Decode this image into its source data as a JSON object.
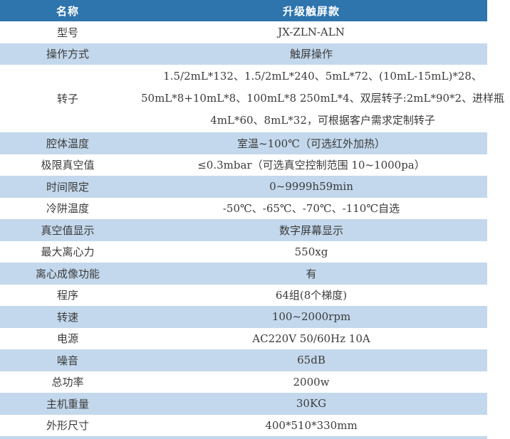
{
  "colors": {
    "header_bg": "#2e74ad",
    "header_text": "#ffffff",
    "row_blue_bg": "#c3d8ec",
    "row_white_bg": "#ffffff",
    "body_text": "#3b3b3b",
    "bottom_strip": "#c3d8ec"
  },
  "table": {
    "header": {
      "name_col": "名称",
      "model_col": "升级触屏款"
    },
    "rows": [
      {
        "label": "型号",
        "value": "JX-ZLN-ALN",
        "shade": "white"
      },
      {
        "label": "操作方式",
        "value": "触屏操作",
        "shade": "blue"
      },
      {
        "label": "转子",
        "value_lines": [
          "1.5/2mL*132、1.5/2mL*240、5mL*72、(10mL-15mL)*28、",
          "50mL*8+10mL*8、100mL*8 250mL*4、双层转子:2mL*90*2、进样瓶",
          "4mL*60、8mL*32，可根据客户需求定制转子"
        ],
        "shade": "white",
        "tall": true
      },
      {
        "label": "腔体温度",
        "value": "室温~100℃（可选红外加热）",
        "shade": "blue"
      },
      {
        "label": "极限真空值",
        "value": "≤0.3mbar（可选真空控制范围 10~1000pa）",
        "shade": "white"
      },
      {
        "label": "时间限定",
        "value": "0~9999h59min",
        "shade": "blue"
      },
      {
        "label": "冷阱温度",
        "value": "-50℃、-65℃、-70℃、-110℃自选",
        "shade": "white"
      },
      {
        "label": "真空值显示",
        "value": "数字屏幕显示",
        "shade": "blue"
      },
      {
        "label": "最大离心力",
        "value": "550xg",
        "shade": "white"
      },
      {
        "label": "离心成像功能",
        "value": "有",
        "shade": "blue"
      },
      {
        "label": "程序",
        "value": "64组(8个梯度)",
        "shade": "white"
      },
      {
        "label": "转速",
        "value": "100~2000rpm",
        "shade": "blue"
      },
      {
        "label": "电源",
        "value": "AC220V 50/60Hz 10A",
        "shade": "white"
      },
      {
        "label": "噪音",
        "value": "65dB",
        "shade": "blue"
      },
      {
        "label": "总功率",
        "value": "2000w",
        "shade": "white"
      },
      {
        "label": "主机重量",
        "value": "30KG",
        "shade": "blue"
      },
      {
        "label": "外形尺寸",
        "value": "400*510*330mm",
        "shade": "white"
      }
    ]
  }
}
